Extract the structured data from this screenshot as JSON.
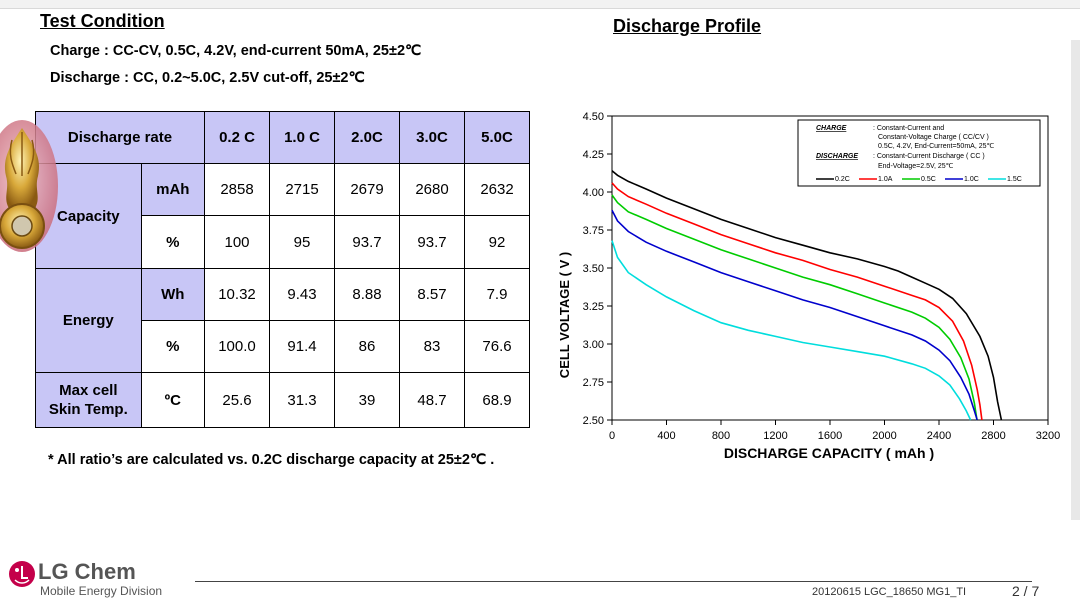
{
  "header": {
    "test_title": "Test Condition",
    "charge_condition": "Charge : CC-CV, 0.5C, 4.2V, end-current 50mA, 25±2℃",
    "discharge_condition": "Discharge : CC, 0.2~5.0C, 2.5V cut-off, 25±2℃",
    "profile_title": "Discharge Profile"
  },
  "table": {
    "head": [
      "Discharge rate",
      "0.2 C",
      "1.0 C",
      "2.0C",
      "3.0C",
      "5.0C"
    ],
    "capacity_label": "Capacity",
    "energy_label": "Energy",
    "temp_label_line1": "Max cell",
    "temp_label_line2": "Skin Temp.",
    "rows": {
      "cap_mah": {
        "unit": "mAh",
        "values": [
          "2858",
          "2715",
          "2679",
          "2680",
          "2632"
        ]
      },
      "cap_pct": {
        "unit": "%",
        "values": [
          "100",
          "95",
          "93.7",
          "93.7",
          "92"
        ]
      },
      "energy_wh": {
        "unit": "Wh",
        "values": [
          "10.32",
          "9.43",
          "8.88",
          "8.57",
          "7.9"
        ]
      },
      "energy_pct": {
        "unit": "%",
        "values": [
          "100.0",
          "91.4",
          "86",
          "83",
          "76.6"
        ]
      },
      "temp": {
        "unit": "ºC",
        "values": [
          "25.6",
          "31.3",
          "39",
          "48.7",
          "68.9"
        ]
      }
    }
  },
  "footnote": "* All ratio’s are calculated vs. 0.2C discharge capacity at 25±2℃ .",
  "footer": {
    "brand": "LG Chem",
    "division": "Mobile Energy Division",
    "doc_id": "20120615 LGC_18650 MG1_TI",
    "page": "2 / 7"
  },
  "colors": {
    "table_header_bg": "#c8c6f6",
    "logo_red": "#c4004a"
  },
  "chart_data": {
    "type": "line",
    "xlabel": "DISCHARGE CAPACITY ( mAh )",
    "ylabel": "CELL VOLTAGE ( V )",
    "xlim": [
      0,
      3200
    ],
    "ylim": [
      2.5,
      4.5
    ],
    "xticks": [
      0,
      400,
      800,
      1200,
      1600,
      2000,
      2400,
      2800,
      3200
    ],
    "yticks": [
      "2.50",
      "2.75",
      "3.00",
      "3.25",
      "3.50",
      "3.75",
      "4.00",
      "4.25",
      "4.50"
    ],
    "grid": false,
    "legend_position": "top-right",
    "legend_text": {
      "charge_title": "CHARGE",
      "charge_line1": ": Constant-Current and",
      "charge_line2": "Constant-Voltage Charge ( CC/CV )",
      "charge_line3": "0.5C, 4.2V, End-Current=50mA, 25℃",
      "discharge_title": "DISCHARGE",
      "discharge_line1": ": Constant-Current Discharge ( CC )",
      "discharge_line2": "End-Voltage=2.5V, 25℃"
    },
    "series": [
      {
        "name": "0.2C",
        "color": "#000000",
        "x": [
          0,
          40,
          120,
          250,
          400,
          600,
          800,
          1000,
          1200,
          1400,
          1600,
          1800,
          2000,
          2100,
          2200,
          2300,
          2400,
          2500,
          2600,
          2700,
          2760,
          2800,
          2830,
          2858
        ],
        "y": [
          4.14,
          4.11,
          4.07,
          4.02,
          3.96,
          3.89,
          3.82,
          3.76,
          3.7,
          3.65,
          3.6,
          3.56,
          3.51,
          3.48,
          3.44,
          3.4,
          3.36,
          3.3,
          3.2,
          3.05,
          2.92,
          2.78,
          2.62,
          2.5
        ]
      },
      {
        "name": "1.0A",
        "color": "#ff0000",
        "x": [
          0,
          40,
          120,
          250,
          400,
          600,
          800,
          1000,
          1200,
          1400,
          1600,
          1800,
          2000,
          2200,
          2300,
          2400,
          2500,
          2580,
          2640,
          2680,
          2700,
          2715
        ],
        "y": [
          4.06,
          4.02,
          3.97,
          3.92,
          3.86,
          3.79,
          3.72,
          3.66,
          3.6,
          3.55,
          3.49,
          3.44,
          3.38,
          3.32,
          3.29,
          3.24,
          3.15,
          3.02,
          2.86,
          2.7,
          2.6,
          2.5
        ]
      },
      {
        "name": "0.5C",
        "color": "#00cc00",
        "x": [
          0,
          40,
          120,
          250,
          400,
          600,
          800,
          1000,
          1200,
          1400,
          1600,
          1800,
          2000,
          2200,
          2300,
          2400,
          2480,
          2560,
          2620,
          2660,
          2679
        ],
        "y": [
          3.98,
          3.93,
          3.87,
          3.82,
          3.76,
          3.69,
          3.62,
          3.56,
          3.5,
          3.44,
          3.39,
          3.33,
          3.27,
          3.21,
          3.17,
          3.11,
          3.03,
          2.91,
          2.77,
          2.61,
          2.5
        ]
      },
      {
        "name": "1.0C",
        "color": "#0000cc",
        "x": [
          0,
          40,
          120,
          250,
          400,
          600,
          800,
          1000,
          1200,
          1400,
          1600,
          1800,
          2000,
          2200,
          2300,
          2400,
          2480,
          2560,
          2620,
          2660,
          2680
        ],
        "y": [
          3.88,
          3.81,
          3.74,
          3.67,
          3.61,
          3.54,
          3.47,
          3.41,
          3.35,
          3.29,
          3.24,
          3.18,
          3.12,
          3.06,
          3.02,
          2.96,
          2.89,
          2.78,
          2.67,
          2.56,
          2.5
        ]
      },
      {
        "name": "1.5C",
        "color": "#00dddd",
        "x": [
          0,
          40,
          120,
          250,
          400,
          600,
          800,
          1000,
          1200,
          1400,
          1600,
          1800,
          2000,
          2200,
          2300,
          2400,
          2480,
          2550,
          2600,
          2632
        ],
        "y": [
          3.68,
          3.57,
          3.47,
          3.39,
          3.31,
          3.22,
          3.14,
          3.09,
          3.05,
          3.01,
          2.98,
          2.95,
          2.92,
          2.87,
          2.84,
          2.79,
          2.73,
          2.64,
          2.56,
          2.5
        ]
      }
    ]
  }
}
